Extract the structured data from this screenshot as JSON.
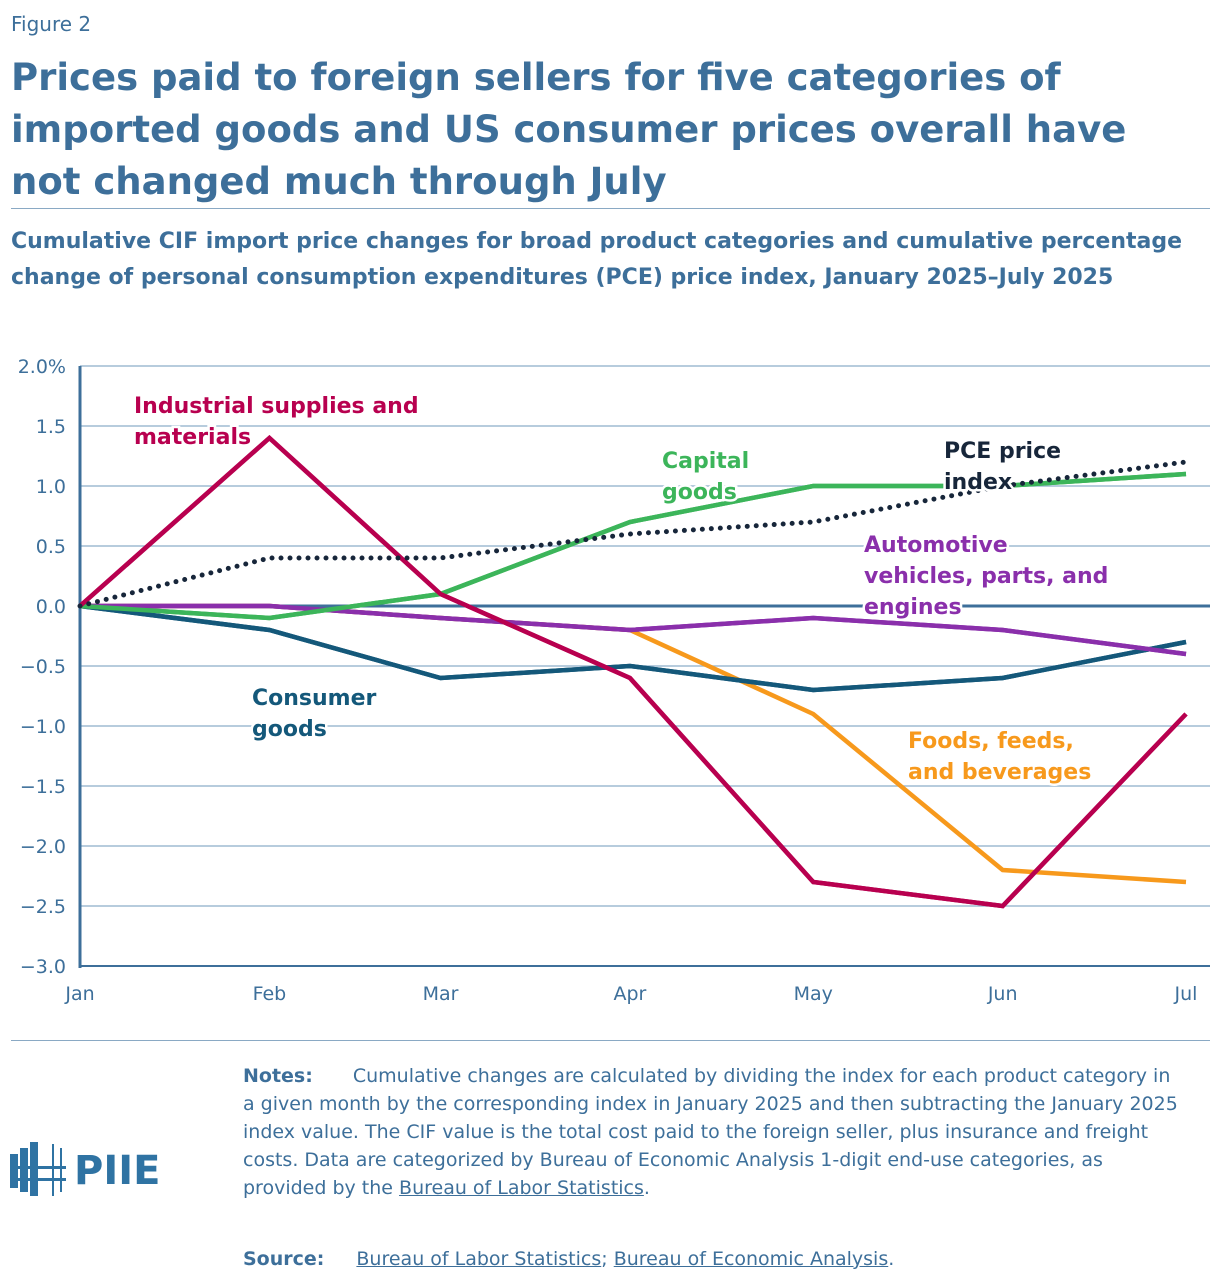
{
  "figure_label": "Figure 2",
  "title": "Prices paid to foreign sellers for five categories of imported goods and US consumer prices overall have not changed much through July",
  "subtitle": "Cumulative CIF import price changes for broad product categories and cumulative percentage change of personal consumption expenditures (PCE) price index, January 2025–July 2025",
  "notes_label": "Notes:",
  "notes_text": "Cumulative changes are calculated by dividing the index for each product category in a given month by the corresponding index in January 2025 and then subtracting the January 2025 index value. The CIF value is the total cost paid to the foreign seller, plus insurance and freight costs. Data are categorized by Bureau of Economic Analysis 1-digit end-use categories, as provided by the ",
  "notes_link": "Bureau of Labor Statistics",
  "notes_end": ".",
  "source_label": "Source:",
  "source_link1": "Bureau of Labor Statistics",
  "source_sep": "; ",
  "source_link2": "Bureau of Economic Analysis",
  "source_end": ".",
  "logo_text": "PIIE",
  "chart_data": {
    "type": "line",
    "categories": [
      "Jan",
      "Feb",
      "Mar",
      "Apr",
      "May",
      "Jun",
      "Jul"
    ],
    "ylim": [
      -3.0,
      2.0
    ],
    "yticks": [
      "2.0%",
      "1.5",
      "1.0",
      "0.5",
      "0.0",
      "−0.5",
      "−1.0",
      "−1.5",
      "−2.0",
      "−2.5",
      "−3.0"
    ],
    "grid": true,
    "series": [
      {
        "name": "Foods, feeds, and beverages",
        "color": "#f7991c",
        "dotted": false,
        "values": [
          0,
          0,
          -0.1,
          -0.2,
          -0.9,
          -2.2,
          -2.3
        ]
      },
      {
        "name": "Consumer goods",
        "color": "#14587a",
        "dotted": false,
        "values": [
          0,
          -0.2,
          -0.6,
          -0.5,
          -0.7,
          -0.6,
          -0.3
        ]
      },
      {
        "name": "Capital goods",
        "color": "#3cb55a",
        "dotted": false,
        "values": [
          0,
          -0.1,
          0.1,
          0.7,
          1.0,
          1.0,
          1.1
        ]
      },
      {
        "name": "Automotive vehicles, parts, and engines",
        "color": "#8a2fab",
        "dotted": false,
        "values": [
          0,
          0,
          -0.1,
          -0.2,
          -0.1,
          -0.2,
          -0.4
        ]
      },
      {
        "name": "Industrial supplies and materials",
        "color": "#b8004f",
        "dotted": false,
        "values": [
          0,
          1.4,
          0.1,
          -0.6,
          -2.3,
          -2.5,
          -0.9
        ]
      },
      {
        "name": "PCE price index",
        "color": "#17263a",
        "dotted": true,
        "values": [
          0,
          0.4,
          0.4,
          0.6,
          0.7,
          1.0,
          1.2
        ]
      }
    ],
    "labels": [
      {
        "lines": [
          "Industrial supplies and",
          "materials"
        ],
        "series": 4
      },
      {
        "lines": [
          "Capital",
          "goods"
        ],
        "series": 2
      },
      {
        "lines": [
          "PCE price",
          "index"
        ],
        "series": 5
      },
      {
        "lines": [
          "Automotive",
          "vehicles, parts, and",
          "engines"
        ],
        "series": 3
      },
      {
        "lines": [
          "Consumer",
          "goods"
        ],
        "series": 1
      },
      {
        "lines": [
          "Foods, feeds,",
          "and beverages"
        ],
        "series": 0
      }
    ]
  }
}
